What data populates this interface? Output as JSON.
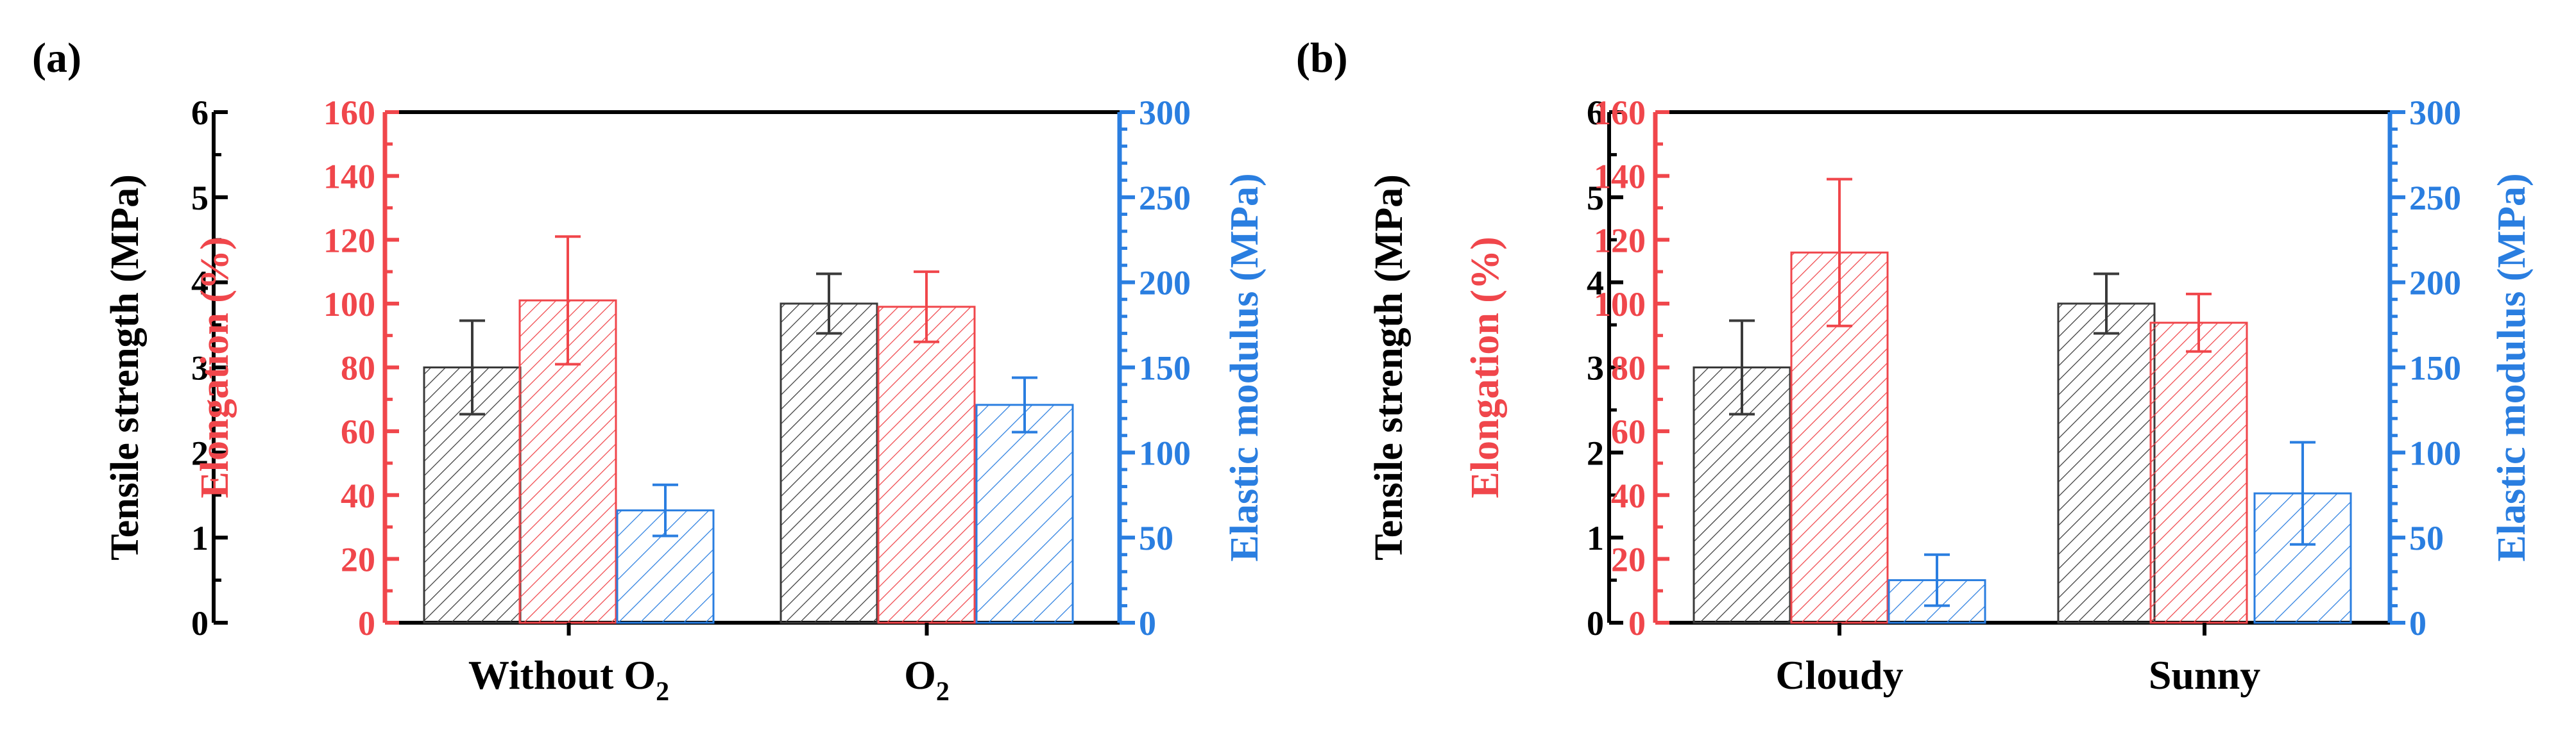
{
  "figure": {
    "colors": {
      "tensile": "#3a3a3a",
      "elongation": "#f0464b",
      "modulus": "#2a7ee0",
      "frame": "#000000"
    }
  },
  "chart_data": [
    {
      "type": "bar",
      "panel_label": "(a)",
      "categories": [
        "Without O",
        "O"
      ],
      "category_subscripts": [
        "2",
        "2"
      ],
      "axes": {
        "left": {
          "label": "Tensile strength (MPa)",
          "ylim": [
            0,
            6
          ],
          "ticks": [
            "0",
            "1",
            "2",
            "3",
            "4",
            "5",
            "6"
          ]
        },
        "left2": {
          "label": "Elongation (%)",
          "ylim": [
            0,
            160
          ],
          "ticks": [
            "0",
            "20",
            "40",
            "60",
            "80",
            "100",
            "120",
            "140",
            "160"
          ]
        },
        "right": {
          "label": "Elastic modulus (MPa)",
          "ylim": [
            0,
            300
          ],
          "ticks": [
            "0",
            "50",
            "100",
            "150",
            "200",
            "250",
            "300"
          ]
        }
      },
      "series": [
        {
          "name": "Tensile strength",
          "axis": "left",
          "values": [
            3.0,
            3.75
          ],
          "errors": [
            0.55,
            0.35
          ]
        },
        {
          "name": "Elongation",
          "axis": "left2",
          "values": [
            101,
            99
          ],
          "errors": [
            20,
            11
          ]
        },
        {
          "name": "Elastic modulus",
          "axis": "right",
          "values": [
            66,
            128
          ],
          "errors": [
            15,
            16
          ]
        }
      ]
    },
    {
      "type": "bar",
      "panel_label": "(b)",
      "categories": [
        "Cloudy",
        "Sunny"
      ],
      "category_subscripts": [
        "",
        ""
      ],
      "axes": {
        "left": {
          "label": "Tensile strength (MPa)",
          "ylim": [
            0,
            6
          ],
          "ticks": [
            "0",
            "1",
            "2",
            "3",
            "4",
            "5",
            "6"
          ]
        },
        "left2": {
          "label": "Elongation (%)",
          "ylim": [
            0,
            160
          ],
          "ticks": [
            "0",
            "20",
            "40",
            "60",
            "80",
            "100",
            "120",
            "140",
            "160"
          ]
        },
        "right": {
          "label": "Elastic modulus (MPa)",
          "ylim": [
            0,
            300
          ],
          "ticks": [
            "0",
            "50",
            "100",
            "150",
            "200",
            "250",
            "300"
          ]
        }
      },
      "series": [
        {
          "name": "Tensile strength",
          "axis": "left",
          "values": [
            3.0,
            3.75
          ],
          "errors": [
            0.55,
            0.35
          ]
        },
        {
          "name": "Elongation",
          "axis": "left2",
          "values": [
            116,
            94
          ],
          "errors": [
            23,
            9
          ]
        },
        {
          "name": "Elastic modulus",
          "axis": "right",
          "values": [
            25,
            76
          ],
          "errors": [
            15,
            30
          ]
        }
      ]
    }
  ]
}
